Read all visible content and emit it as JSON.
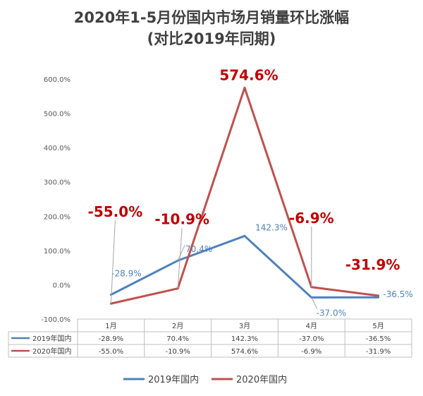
{
  "chart_data": {
    "type": "line",
    "title": "2020年1-5月份国内市场月销量环比涨幅",
    "subtitle": "(对比2019年同期)",
    "categories": [
      "1月",
      "2月",
      "3月",
      "4月",
      "5月"
    ],
    "ylim": [
      -100,
      600
    ],
    "yticks": [
      -100,
      0,
      100,
      200,
      300,
      400,
      500,
      600
    ],
    "ytick_labels": [
      "-100.0%",
      "0.0%",
      "100.0%",
      "200.0%",
      "300.0%",
      "400.0%",
      "500.0%",
      "600.0%"
    ],
    "grid": false,
    "legend_position": "bottom",
    "series": [
      {
        "name": "2019年国内",
        "color": "#4f81bd",
        "values": [
          -28.9,
          70.4,
          142.3,
          -37.0,
          -36.5
        ],
        "labels": [
          "-28.9%",
          "70.4%",
          "142.3%",
          "-37.0%",
          "-36.5%"
        ]
      },
      {
        "name": "2020年国内",
        "color": "#c0504d",
        "values": [
          -55.0,
          -10.9,
          574.6,
          -6.9,
          -31.9
        ],
        "labels": [
          "-55.0%",
          "-10.9%",
          "574.6%",
          "-6.9%",
          "-31.9%"
        ]
      }
    ],
    "table": {
      "rows": [
        {
          "series": "2019年国内",
          "cells": [
            "-28.9%",
            "70.4%",
            "142.3%",
            "-37.0%",
            "-36.5%"
          ]
        },
        {
          "series": "2020年国内",
          "cells": [
            "-55.0%",
            "-10.9%",
            "574.6%",
            "-6.9%",
            "-31.9%"
          ]
        }
      ]
    }
  }
}
